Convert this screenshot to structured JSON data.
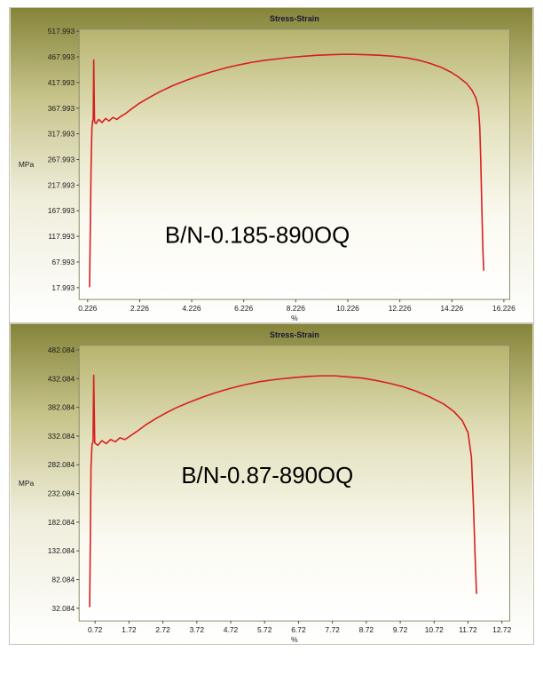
{
  "page": {
    "background": "#ffffff"
  },
  "styles": {
    "curve_color": "#d81e1e",
    "text_color": "#1c1c1c",
    "title_color": "#16163a",
    "plot_border": "#8d8d70",
    "tick_color": "#4a4a3a",
    "card_gradient": [
      [
        0,
        "#85843a"
      ],
      [
        0.28,
        "#c6c389"
      ],
      [
        0.6,
        "#efedda"
      ],
      [
        1,
        "#ffffff"
      ]
    ],
    "plot_gradient": [
      [
        0,
        "#b7b46e"
      ],
      [
        0.35,
        "#e4e2bf"
      ],
      [
        0.7,
        "#fbfaf1"
      ],
      [
        1,
        "#ffffff"
      ]
    ]
  },
  "chart_data": [
    {
      "type": "line",
      "title": "Stress-Strain",
      "xlabel": "%",
      "ylabel": "MPa",
      "annotation": {
        "text": "B/N-0.185-890OQ",
        "x": 6.75,
        "y": 105
      },
      "xlim": [
        -0.1,
        16.45
      ],
      "ylim": [
        -5,
        522
      ],
      "grid": false,
      "legend": false,
      "x_ticks": [
        "0.226",
        "2.226",
        "4.226",
        "6.226",
        "8.226",
        "10.226",
        "12.226",
        "14.226",
        "16.226"
      ],
      "y_ticks": [
        "517.993",
        "467.993",
        "417.993",
        "367.993",
        "317.993",
        "267.993",
        "217.993",
        "167.993",
        "117.993",
        "67.993",
        "17.993"
      ],
      "series": [
        {
          "name": "B/N-0.185-890OQ stress-strain curve",
          "color": "#d81e1e",
          "points": [
            [
              0.3,
              20
            ],
            [
              0.33,
              140
            ],
            [
              0.36,
              260
            ],
            [
              0.39,
              330
            ],
            [
              0.42,
              344
            ],
            [
              0.44,
              346
            ],
            [
              0.46,
              462
            ],
            [
              0.49,
              341
            ],
            [
              0.55,
              338
            ],
            [
              0.65,
              346
            ],
            [
              0.78,
              340
            ],
            [
              0.92,
              348
            ],
            [
              1.05,
              343
            ],
            [
              1.2,
              350
            ],
            [
              1.35,
              346
            ],
            [
              1.5,
              352
            ],
            [
              1.7,
              358
            ],
            [
              1.9,
              366
            ],
            [
              2.2,
              377
            ],
            [
              2.6,
              389
            ],
            [
              3.0,
              400
            ],
            [
              3.5,
              412
            ],
            [
              4.0,
              422
            ],
            [
              4.5,
              431
            ],
            [
              5.0,
              439
            ],
            [
              5.5,
              446
            ],
            [
              6.0,
              452
            ],
            [
              6.5,
              457
            ],
            [
              7.0,
              461
            ],
            [
              7.5,
              464
            ],
            [
              8.0,
              467
            ],
            [
              8.5,
              469
            ],
            [
              9.0,
              471
            ],
            [
              9.5,
              472
            ],
            [
              10.0,
              473
            ],
            [
              10.5,
              473
            ],
            [
              11.0,
              472
            ],
            [
              11.5,
              471
            ],
            [
              12.0,
              469
            ],
            [
              12.5,
              466
            ],
            [
              13.0,
              461
            ],
            [
              13.4,
              455
            ],
            [
              13.8,
              448
            ],
            [
              14.2,
              438
            ],
            [
              14.5,
              428
            ],
            [
              14.8,
              416
            ],
            [
              15.0,
              403
            ],
            [
              15.15,
              388
            ],
            [
              15.25,
              368
            ],
            [
              15.3,
              330
            ],
            [
              15.34,
              260
            ],
            [
              15.38,
              170
            ],
            [
              15.42,
              90
            ],
            [
              15.45,
              52
            ]
          ]
        }
      ]
    },
    {
      "type": "line",
      "title": "Stress-Strain",
      "xlabel": "%",
      "ylabel": "MPa",
      "annotation": {
        "text": "B/N-0.87-890OQ",
        "x": 5.8,
        "y": 250
      },
      "xlim": [
        0.25,
        12.95
      ],
      "ylim": [
        10,
        490
      ],
      "grid": false,
      "legend": false,
      "x_ticks": [
        "0.72",
        "1.72",
        "2.72",
        "3.72",
        "4.72",
        "5.72",
        "6.72",
        "7.72",
        "8.72",
        "9.72",
        "10.72",
        "11.72",
        "12.72"
      ],
      "y_ticks": [
        "482.084",
        "432.084",
        "382.084",
        "332.084",
        "282.084",
        "232.084",
        "182.084",
        "132.084",
        "82.084",
        "32.084"
      ],
      "series": [
        {
          "name": "B/N-0.87-890OQ stress-strain curve",
          "color": "#d81e1e",
          "points": [
            [
              0.56,
              35
            ],
            [
              0.58,
              150
            ],
            [
              0.6,
              280
            ],
            [
              0.63,
              318
            ],
            [
              0.66,
              322
            ],
            [
              0.68,
              438
            ],
            [
              0.71,
              320
            ],
            [
              0.8,
              316
            ],
            [
              0.92,
              324
            ],
            [
              1.05,
              319
            ],
            [
              1.18,
              326
            ],
            [
              1.32,
              322
            ],
            [
              1.45,
              329
            ],
            [
              1.6,
              326
            ],
            [
              1.75,
              332
            ],
            [
              1.95,
              340
            ],
            [
              2.2,
              351
            ],
            [
              2.5,
              362
            ],
            [
              2.8,
              372
            ],
            [
              3.1,
              381
            ],
            [
              3.5,
              391
            ],
            [
              3.9,
              400
            ],
            [
              4.3,
              408
            ],
            [
              4.7,
              415
            ],
            [
              5.1,
              421
            ],
            [
              5.6,
              427
            ],
            [
              6.1,
              431
            ],
            [
              6.6,
              434
            ],
            [
              7.0,
              436
            ],
            [
              7.4,
              437
            ],
            [
              7.8,
              437
            ],
            [
              8.2,
              435
            ],
            [
              8.6,
              433
            ],
            [
              9.0,
              429
            ],
            [
              9.4,
              424
            ],
            [
              9.8,
              418
            ],
            [
              10.2,
              410
            ],
            [
              10.6,
              400
            ],
            [
              11.0,
              388
            ],
            [
              11.3,
              375
            ],
            [
              11.55,
              359
            ],
            [
              11.72,
              338
            ],
            [
              11.82,
              295
            ],
            [
              11.88,
              210
            ],
            [
              11.93,
              120
            ],
            [
              11.97,
              58
            ]
          ]
        }
      ]
    }
  ]
}
